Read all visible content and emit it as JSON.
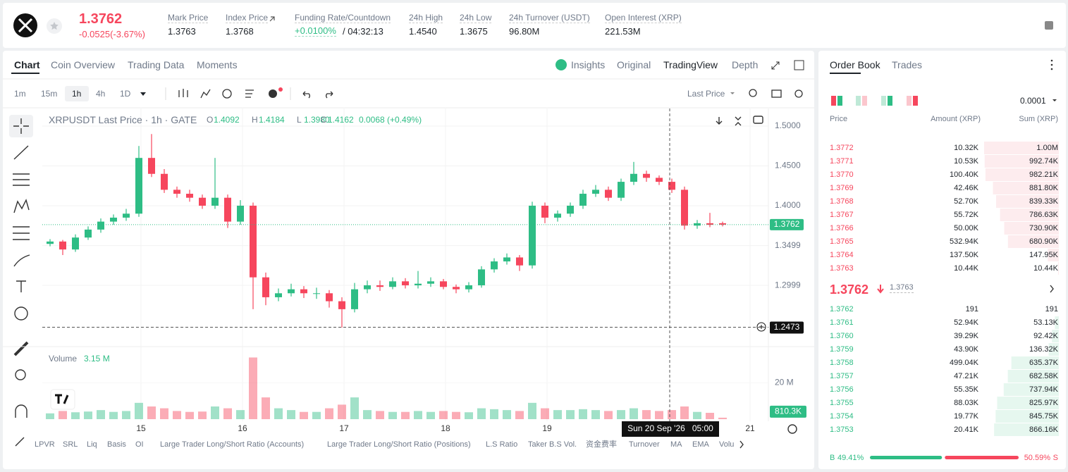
{
  "header": {
    "price": "1.3762",
    "change": "-0.0525(-3.67%)",
    "stats": [
      {
        "label": "Mark Price",
        "value": "1.3763"
      },
      {
        "label": "Index Price",
        "value": "1.3768"
      },
      {
        "label": "Funding Rate/Countdown",
        "value": "+0.0100%",
        "extra": "/ 04:32:13"
      },
      {
        "label": "24h High",
        "value": "1.4540"
      },
      {
        "label": "24h Low",
        "value": "1.3675"
      },
      {
        "label": "24h Turnover (USDT)",
        "value": "96.80M"
      },
      {
        "label": "Open Interest (XRP)",
        "value": "221.53M"
      }
    ]
  },
  "chart_tabs": [
    "Chart",
    "Coin Overview",
    "Trading Data",
    "Moments"
  ],
  "view_tabs": [
    "Insights",
    "Original",
    "TradingView",
    "Depth"
  ],
  "intervals": [
    "1m",
    "15m",
    "1h",
    "4h",
    "1D"
  ],
  "price_source": "Last Price",
  "legend": {
    "symbol": "XRPUSDT Last Price · 1h · GATE",
    "o_label": "O",
    "o": "1.4092",
    "h_label": "H",
    "h": "1.4184",
    "l_label": "L",
    "l": "1.3980",
    "c_label": "C",
    "c": "1.4162",
    "change": "0.0068 (+0.49%)"
  },
  "volume_legend": {
    "label": "Volume",
    "value": "3.15 M"
  },
  "chart_data": {
    "type": "candlestick",
    "up_color": "#2ebd85",
    "down_color": "#f6465d",
    "x": [
      1.5,
      4.5,
      7.5,
      10.5,
      13.5,
      16.5,
      19.5,
      22.5,
      25.5,
      28.5,
      31.5,
      34.5,
      37.5,
      40.5,
      43.5,
      46.5,
      49.5,
      52.5,
      55.5,
      58.5,
      61.5,
      64.5,
      67.5,
      70.5,
      73.5,
      76.5,
      79.5,
      82.5,
      85.5,
      88.5,
      91.5,
      94.5,
      97.5,
      100.5,
      103.5,
      106.5,
      109.5,
      112.5,
      115.5,
      118.5,
      121.5,
      124.5,
      127.5,
      130.5,
      133.5,
      136.5,
      139.5,
      142.5,
      145.5,
      148.5,
      151.5,
      154.5,
      157.5,
      160.5
    ],
    "open": [
      1.352,
      1.355,
      1.345,
      1.36,
      1.37,
      1.38,
      1.385,
      1.39,
      1.46,
      1.44,
      1.42,
      1.415,
      1.41,
      1.4,
      1.41,
      1.38,
      1.4,
      1.31,
      1.285,
      1.29,
      1.295,
      1.29,
      1.29,
      1.28,
      1.27,
      1.295,
      1.3,
      1.298,
      1.305,
      1.3,
      1.302,
      1.305,
      1.298,
      1.295,
      1.3,
      1.32,
      1.33,
      1.335,
      1.325,
      1.4,
      1.385,
      1.39,
      1.4,
      1.415,
      1.42,
      1.41,
      1.43,
      1.44,
      1.435,
      1.43,
      1.42,
      1.375,
      1.378,
      1.378
    ],
    "high": [
      1.358,
      1.357,
      1.364,
      1.374,
      1.384,
      1.389,
      1.396,
      1.475,
      1.49,
      1.446,
      1.424,
      1.42,
      1.414,
      1.46,
      1.414,
      1.407,
      1.404,
      1.316,
      1.296,
      1.302,
      1.299,
      1.297,
      1.294,
      1.285,
      1.303,
      1.306,
      1.306,
      1.31,
      1.309,
      1.318,
      1.31,
      1.308,
      1.301,
      1.304,
      1.324,
      1.334,
      1.34,
      1.338,
      1.405,
      1.404,
      1.394,
      1.404,
      1.42,
      1.426,
      1.424,
      1.434,
      1.455,
      1.444,
      1.438,
      1.434,
      1.424,
      1.382,
      1.391,
      1.38
    ],
    "low": [
      1.349,
      1.338,
      1.342,
      1.357,
      1.366,
      1.376,
      1.381,
      1.386,
      1.436,
      1.416,
      1.41,
      1.405,
      1.396,
      1.396,
      1.372,
      1.376,
      1.27,
      1.275,
      1.28,
      1.286,
      1.284,
      1.283,
      1.272,
      1.247,
      1.266,
      1.29,
      1.293,
      1.295,
      1.296,
      1.296,
      1.298,
      1.295,
      1.29,
      1.291,
      1.297,
      1.316,
      1.326,
      1.318,
      1.321,
      1.378,
      1.38,
      1.386,
      1.396,
      1.411,
      1.406,
      1.406,
      1.426,
      1.43,
      1.426,
      1.416,
      1.37,
      1.371,
      1.373,
      1.374
    ],
    "close": [
      1.355,
      1.345,
      1.36,
      1.37,
      1.38,
      1.385,
      1.39,
      1.46,
      1.44,
      1.42,
      1.415,
      1.41,
      1.4,
      1.41,
      1.38,
      1.4,
      1.31,
      1.285,
      1.29,
      1.295,
      1.29,
      1.29,
      1.28,
      1.27,
      1.295,
      1.3,
      1.298,
      1.305,
      1.3,
      1.302,
      1.305,
      1.298,
      1.295,
      1.3,
      1.32,
      1.33,
      1.335,
      1.325,
      1.4,
      1.385,
      1.39,
      1.4,
      1.415,
      1.42,
      1.41,
      1.43,
      1.44,
      1.435,
      1.43,
      1.42,
      1.375,
      1.378,
      1.376,
      1.3762
    ],
    "volume": [
      3.2,
      4.5,
      3.8,
      4.2,
      5,
      4,
      4.5,
      9,
      7,
      6,
      4.5,
      4,
      4.2,
      7,
      6,
      5,
      34,
      12,
      6,
      5,
      4,
      4,
      6,
      8,
      12,
      5,
      4.5,
      4,
      4,
      4.5,
      4,
      4.5,
      4,
      3.8,
      6,
      5.5,
      5,
      4.5,
      9,
      6,
      5,
      5,
      5.5,
      5,
      4.5,
      5,
      6,
      5,
      4.5,
      5,
      7,
      4,
      3.5,
      0.8103
    ],
    "volume_last_label": "810.3K",
    "xlim": [
      0,
      172
    ],
    "xticks": [
      {
        "value": 23,
        "label": "15"
      },
      {
        "value": 47,
        "label": "16"
      },
      {
        "value": 71,
        "label": "17"
      },
      {
        "value": 95,
        "label": "18"
      },
      {
        "value": 119,
        "label": "19"
      },
      {
        "value": 167,
        "label": "21"
      }
    ],
    "ylim": [
      1.223,
      1.5221
    ],
    "yticks": [
      {
        "value": 1.5,
        "label": "1.5000"
      },
      {
        "value": 1.45,
        "label": "1.4500"
      },
      {
        "value": 1.4,
        "label": "1.4000"
      },
      {
        "value": 1.3499,
        "label": "1.3499"
      },
      {
        "value": 1.2999,
        "label": "1.2999"
      }
    ],
    "volume_ylim": [
      0,
      40
    ],
    "volume_ticks": [
      {
        "value": 20,
        "label": "20 M"
      }
    ],
    "current_price": {
      "value": 1.3762,
      "label": "1.3762"
    },
    "crosshair": {
      "price": {
        "value": 1.2473,
        "label": "1.2473"
      },
      "x": 148,
      "time": "Sun 20 Sep '26   05:00"
    }
  },
  "indicators": [
    "LPVR",
    "SRL",
    "Liq",
    "Basis",
    "OI",
    "Large Trader Long/Short Ratio (Accounts)",
    "Large Trader Long/Short Ratio (Positions)",
    "L.S Ratio",
    "Taker B.S Vol.",
    "资金费率",
    "Turnover",
    "MA",
    "EMA",
    "Volu"
  ],
  "order_book": {
    "tabs": [
      "Order Book",
      "Trades"
    ],
    "precision": "0.0001",
    "columns": [
      "Price",
      "Amount (XRP)",
      "Sum (XRP)"
    ],
    "asks": [
      {
        "price": "1.3772",
        "amount": "10.32K",
        "sum": {
          "value": 1000000,
          "label": "1.00M"
        }
      },
      {
        "price": "1.3771",
        "amount": "10.53K",
        "sum": {
          "value": 992740,
          "label": "992.74K"
        }
      },
      {
        "price": "1.3770",
        "amount": "100.40K",
        "sum": {
          "value": 982210,
          "label": "982.21K"
        }
      },
      {
        "price": "1.3769",
        "amount": "42.46K",
        "sum": {
          "value": 881800,
          "label": "881.80K"
        }
      },
      {
        "price": "1.3768",
        "amount": "52.70K",
        "sum": {
          "value": 839330,
          "label": "839.33K"
        }
      },
      {
        "price": "1.3767",
        "amount": "55.72K",
        "sum": {
          "value": 786630,
          "label": "786.63K"
        }
      },
      {
        "price": "1.3766",
        "amount": "50.00K",
        "sum": {
          "value": 730900,
          "label": "730.90K"
        }
      },
      {
        "price": "1.3765",
        "amount": "532.94K",
        "sum": {
          "value": 680900,
          "label": "680.90K"
        }
      },
      {
        "price": "1.3764",
        "amount": "137.50K",
        "sum": {
          "value": 147950,
          "label": "147.95K"
        }
      },
      {
        "price": "1.3763",
        "amount": "10.44K",
        "sum": {
          "value": 10440,
          "label": "10.44K"
        }
      }
    ],
    "mid_price": "1.3762",
    "mark_price": "1.3763",
    "bids": [
      {
        "price": "1.3762",
        "amount": "191",
        "sum": {
          "value": 191,
          "label": "191"
        }
      },
      {
        "price": "1.3761",
        "amount": "52.94K",
        "sum": {
          "value": 53130,
          "label": "53.13K"
        }
      },
      {
        "price": "1.3760",
        "amount": "39.29K",
        "sum": {
          "value": 92420,
          "label": "92.42K"
        }
      },
      {
        "price": "1.3759",
        "amount": "43.90K",
        "sum": {
          "value": 136320,
          "label": "136.32K"
        }
      },
      {
        "price": "1.3758",
        "amount": "499.04K",
        "sum": {
          "value": 635370,
          "label": "635.37K"
        }
      },
      {
        "price": "1.3757",
        "amount": "47.21K",
        "sum": {
          "value": 682580,
          "label": "682.58K"
        }
      },
      {
        "price": "1.3756",
        "amount": "55.35K",
        "sum": {
          "value": 737940,
          "label": "737.94K"
        }
      },
      {
        "price": "1.3755",
        "amount": "88.03K",
        "sum": {
          "value": 825970,
          "label": "825.97K"
        }
      },
      {
        "price": "1.3754",
        "amount": "19.77K",
        "sum": {
          "value": 845750,
          "label": "845.75K"
        }
      },
      {
        "price": "1.3753",
        "amount": "20.41K",
        "sum": {
          "value": 866160,
          "label": "866.16K"
        }
      }
    ],
    "buy_label": "B",
    "sell_label": "S",
    "buy_ratio": {
      "value": 49.41,
      "label": "49.41%"
    },
    "sell_ratio": {
      "value": 50.59,
      "label": "50.59%"
    }
  }
}
